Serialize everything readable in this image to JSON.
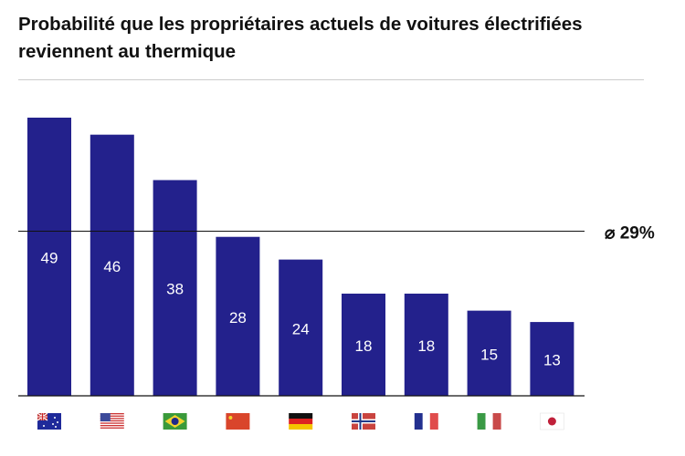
{
  "chart_data": {
    "type": "bar",
    "title": "Probabilité que les propriétaires actuels de voitures électrifiées reviennent au thermique",
    "categories": [
      "Australia",
      "USA",
      "Brazil",
      "China",
      "Germany",
      "Norway",
      "France",
      "Italy",
      "Japan"
    ],
    "flag_icons": [
      "flag-au",
      "flag-us",
      "flag-br",
      "flag-cn",
      "flag-de",
      "flag-no",
      "flag-fr",
      "flag-it",
      "flag-jp"
    ],
    "values": [
      49,
      46,
      38,
      28,
      24,
      18,
      18,
      15,
      13
    ],
    "average": {
      "value": 29,
      "label": "⌀ 29%"
    },
    "ylim": [
      0,
      49
    ],
    "bar_color": "#23218c",
    "grid": false
  }
}
